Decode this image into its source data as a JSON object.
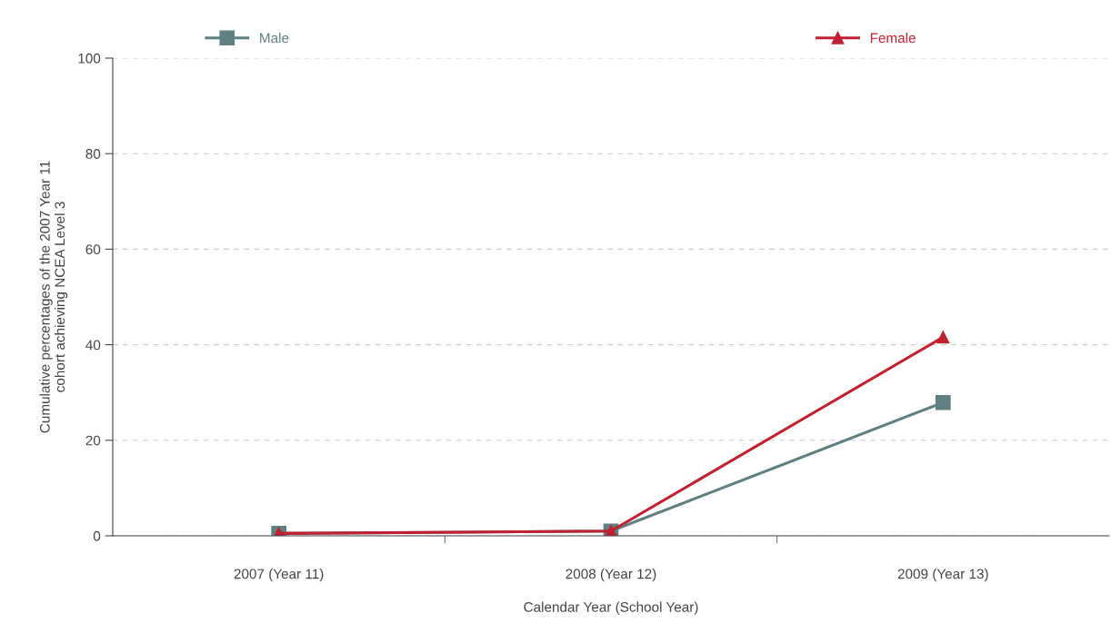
{
  "chart_data": {
    "type": "line",
    "xlabel": "Calendar Year (School Year)",
    "ylabel": "Cumulative percentages of the 2007 Year 11\ncohort achieving NCEA Level 3",
    "categories": [
      "2007 (Year 11)",
      "2008 (Year 12)",
      "2009 (Year 13)"
    ],
    "series": [
      {
        "name": "Male",
        "color": "#5f7f80",
        "marker": "square",
        "values": [
          0.5,
          1.0,
          27.9
        ]
      },
      {
        "name": "Female",
        "color": "#c0202f",
        "marker": "triangle",
        "values": [
          0.5,
          1.0,
          41.6
        ]
      }
    ],
    "ylim": [
      0,
      100
    ],
    "yticks": [
      0,
      20,
      40,
      60,
      80,
      100
    ],
    "grid": "y",
    "legend": "top",
    "line_style": "solid"
  }
}
